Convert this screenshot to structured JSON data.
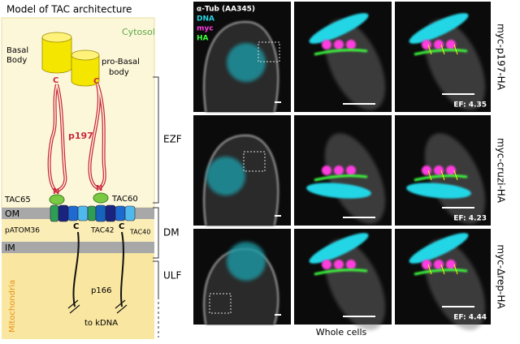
{
  "model": {
    "title": "Model of TAC architecture",
    "cytosol": "Cytosol",
    "basal_body": [
      "Basal",
      "Body"
    ],
    "pro_basal_body": [
      "pro-Basal",
      "body"
    ],
    "p197": "p197",
    "c_terminus": "C",
    "n_terminus": "N",
    "tac65": "TAC65",
    "tac60": "TAC60",
    "om": "OM",
    "patom36": "pATOM36",
    "tac42": "TAC42",
    "tac40": "TAC40",
    "im": "IM",
    "p166": "p166",
    "to_kdna": "to kDNA",
    "mitochondria": "Mitochondria"
  },
  "brackets": [
    "EZF",
    "DM",
    "ULF"
  ],
  "channels": [
    "α-Tub (AA345)",
    "DNA",
    "myc",
    "HA"
  ],
  "rows": [
    {
      "label": "myc-p197-HA",
      "ef": "EF: 4.35"
    },
    {
      "label": "myc-cruzi-HA",
      "ef": "EF: 4.23"
    },
    {
      "label": "myc-Δrep-HA",
      "ef": "EF: 4.44"
    }
  ],
  "footer": "Whole cells"
}
